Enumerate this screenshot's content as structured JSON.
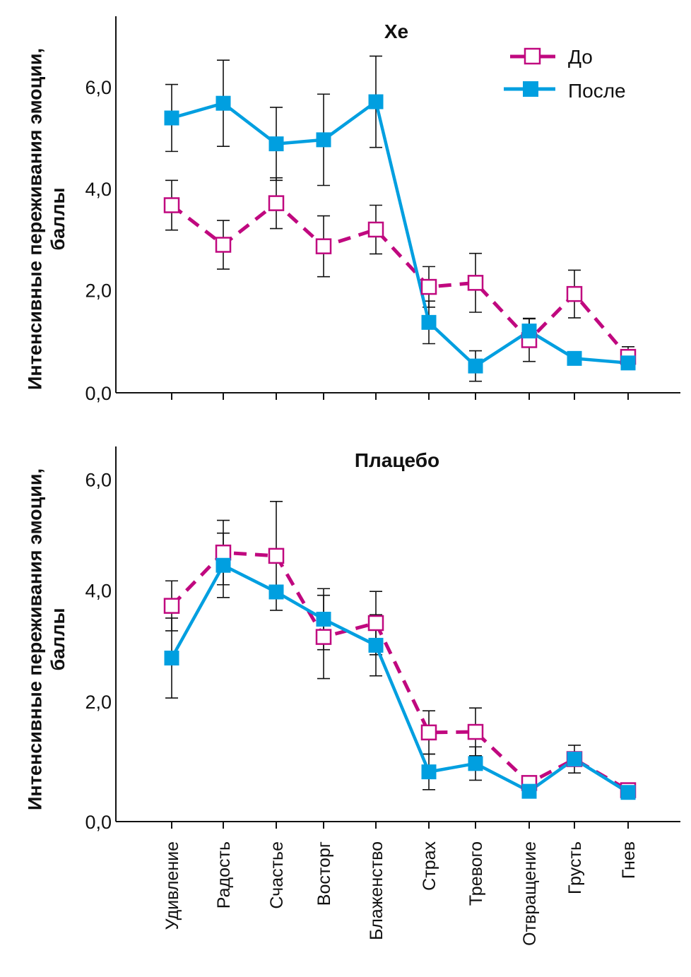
{
  "chart_data": [
    {
      "type": "line",
      "title": "Хе",
      "ylabel": "Интенсивные переживания эмоции, баллы",
      "xlabel": "",
      "ylim": [
        0,
        7.4
      ],
      "yticks": [
        "0,0",
        "2,0",
        "4,0",
        "6,0"
      ],
      "ytick_values": [
        0,
        2,
        4,
        6
      ],
      "grid": false,
      "legend": "top-right",
      "categories": [
        "Удивление",
        "Радость",
        "Счастье",
        "Восторг",
        "Блаженство",
        "Страх",
        "Тревого",
        "Отвращение",
        "Грусть",
        "Гнев"
      ],
      "series": [
        {
          "name": "До",
          "style": "dashed-open-square",
          "color": "#c0087f",
          "values": [
            3.67,
            2.89,
            3.71,
            2.86,
            3.19,
            2.06,
            2.14,
            1.01,
            1.92,
            0.68
          ],
          "errors": [
            0.49,
            0.48,
            0.5,
            0.6,
            0.48,
            0.4,
            0.58,
            0.42,
            0.47,
            0.2
          ]
        },
        {
          "name": "После",
          "style": "solid-filled-square",
          "color": "#009fe0",
          "values": [
            5.39,
            5.68,
            4.88,
            4.96,
            5.71,
            1.36,
            0.5,
            1.19,
            0.65,
            0.56
          ],
          "errors": [
            0.66,
            0.85,
            0.72,
            0.9,
            0.9,
            0.42,
            0.3,
            0.25,
            0.0,
            0.0
          ]
        }
      ]
    },
    {
      "type": "line",
      "title": "Плацебо",
      "ylabel": "Интенсивные переживания эмоции, баллы",
      "xlabel": "",
      "ylim": [
        0,
        6.6
      ],
      "yticks": [
        "0,0",
        "2,0",
        "4,0",
        "6,0"
      ],
      "ytick_values": [
        0,
        2,
        4,
        6
      ],
      "grid": false,
      "legend": "none",
      "categories": [
        "Удивление",
        "Радость",
        "Счастье",
        "Восторг",
        "Блаженство",
        "Страх",
        "Тревого",
        "Отвращение",
        "Грусть",
        "Гнев"
      ],
      "series": [
        {
          "name": "До",
          "style": "dashed-open-square",
          "color": "#c0087f",
          "values": [
            3.72,
            4.68,
            4.62,
            3.16,
            3.41,
            1.44,
            1.45,
            0.53,
            0.96,
            0.4
          ],
          "errors": [
            0.45,
            0.58,
            0.98,
            0.75,
            0.57,
            0.39,
            0.43,
            0.0,
            0.25,
            0.0
          ]
        },
        {
          "name": "После",
          "style": "solid-filled-square",
          "color": "#009fe0",
          "values": [
            2.78,
            4.45,
            3.97,
            3.48,
            3.01,
            0.73,
            0.88,
            0.38,
            0.96,
            0.36
          ],
          "errors": [
            0.72,
            0.58,
            0.0,
            0.55,
            0.55,
            0.32,
            0.3,
            0.0,
            0.0,
            0.0
          ]
        }
      ]
    }
  ]
}
